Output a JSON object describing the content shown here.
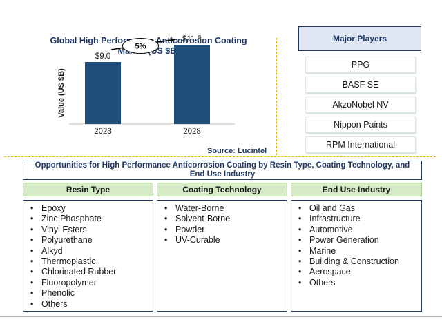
{
  "chart_data": {
    "type": "bar",
    "title": "Global High Performance Anticorrosion Coating Market (US $B)",
    "ylabel": "Value (US $B)",
    "xlabel": "",
    "categories": [
      "2023",
      "2028"
    ],
    "values": [
      9.0,
      11.5
    ],
    "value_labels": [
      "$9.0",
      "$11.5"
    ],
    "growth_label": "5%",
    "bar_color": "#1f4e79",
    "ylim": [
      0,
      12
    ]
  },
  "source": "Source: Lucintel",
  "major_players": {
    "header": "Major Players",
    "items": [
      "PPG",
      "BASF SE",
      "AkzoNobel NV",
      "Nippon Paints",
      "RPM International"
    ]
  },
  "opportunities": {
    "title": "Opportunities for High Performance Anticorrosion Coating by Resin Type, Coating Technology, and End Use Industry",
    "columns": [
      {
        "header": "Resin Type",
        "items": [
          "Epoxy",
          "Zinc Phosphate",
          "Vinyl Esters",
          "Polyurethane",
          "Alkyd",
          "Thermoplastic",
          "Chlorinated Rubber",
          "Fluoropolymer",
          "Phenolic",
          "Others"
        ]
      },
      {
        "header": "Coating Technology",
        "items": [
          "Water-Borne",
          "Solvent-Borne",
          "Powder",
          "UV-Curable"
        ]
      },
      {
        "header": "End Use Industry",
        "items": [
          "Oil and Gas",
          "Infrastructure",
          "Automotive",
          "Power Generation",
          "Marine",
          "Building & Construction",
          "Aerospace",
          "Others"
        ]
      }
    ]
  },
  "colors": {
    "accent": "#1f3864",
    "bar": "#1f4e79",
    "category_header_bg": "#d4ebc5",
    "divider": "#e3b400"
  }
}
